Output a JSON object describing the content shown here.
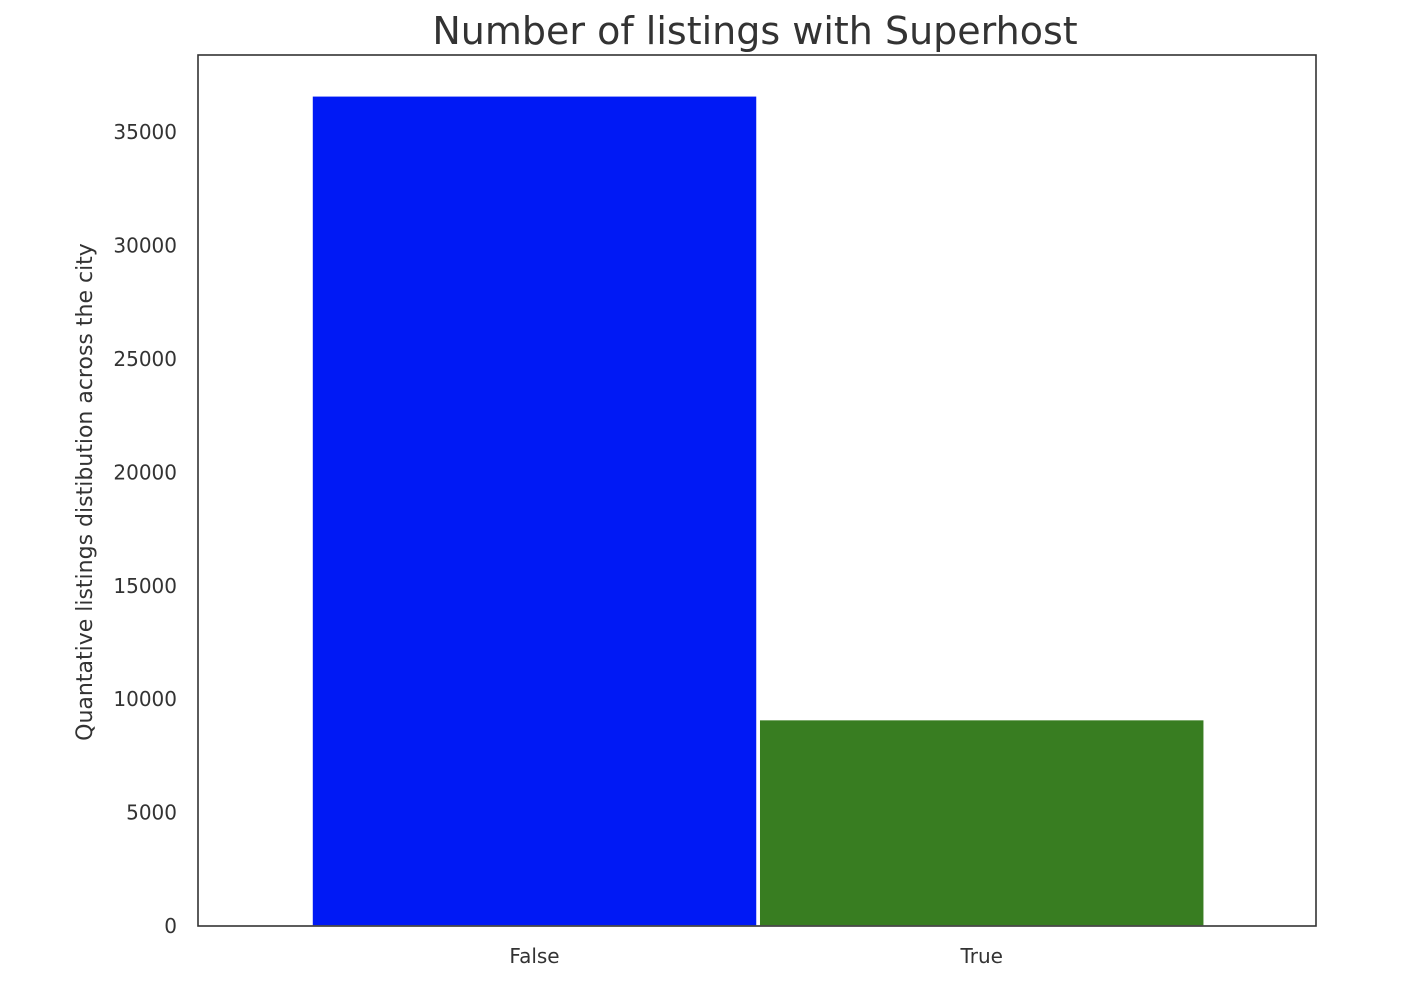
{
  "chart_data": {
    "type": "bar",
    "title": "Number of listings with Superhost",
    "xlabel": "",
    "ylabel": "Quantative listings distibution across the city",
    "categories": [
      "False",
      "True"
    ],
    "values": [
      36600,
      9100
    ],
    "colors": [
      "#0019f5",
      "#387d21"
    ],
    "ylim": [
      0,
      38400
    ],
    "yticks": [
      0,
      5000,
      10000,
      15000,
      20000,
      25000,
      30000,
      35000
    ],
    "ytick_labels": [
      "0",
      "5000",
      "10000",
      "15000",
      "20000",
      "25000",
      "30000",
      "35000"
    ],
    "grid": false,
    "legend": null
  }
}
